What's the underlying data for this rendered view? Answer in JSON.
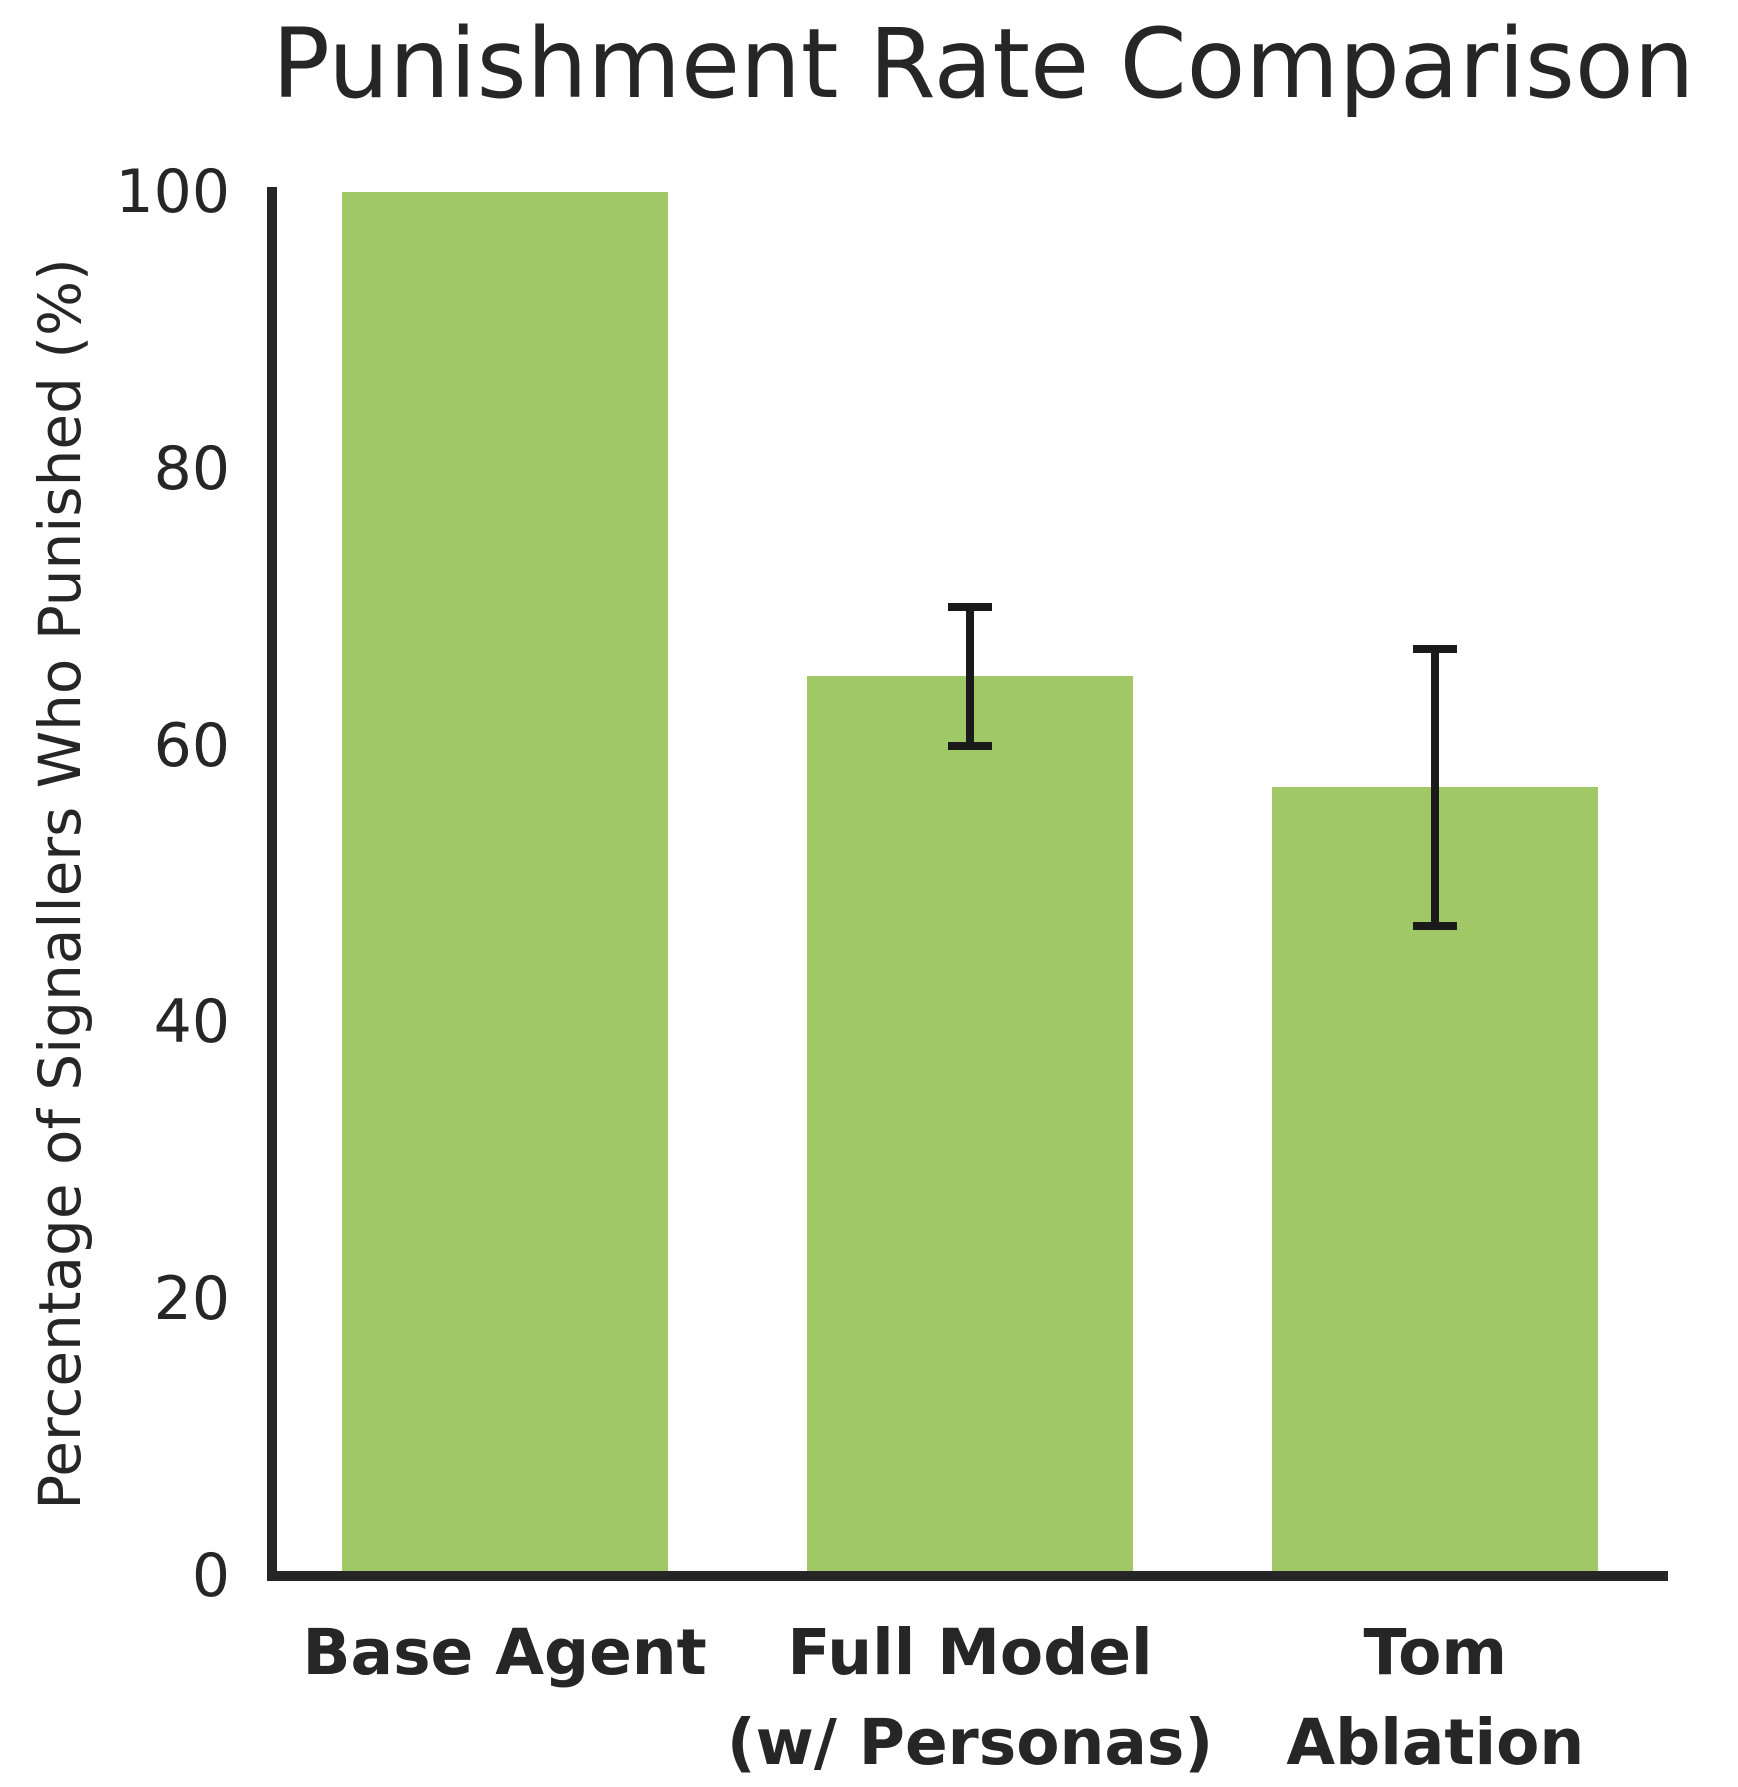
{
  "chart_data": {
    "type": "bar",
    "title": "Punishment Rate Comparison",
    "ylabel": "Percentage of Signallers Who Punished (%)",
    "xlabel": "",
    "ylim": [
      0,
      100
    ],
    "yticks": [
      0,
      20,
      40,
      60,
      80,
      100
    ],
    "categories": [
      [
        "Base Agent"
      ],
      [
        "Full Model",
        "(w/ Personas)"
      ],
      [
        "Tom",
        "Ablation"
      ]
    ],
    "values": [
      100,
      65,
      57
    ],
    "error_bars": [
      {
        "low": null,
        "high": null
      },
      {
        "low": 60,
        "high": 70
      },
      {
        "low": 47,
        "high": 67
      }
    ],
    "grid": false,
    "legend": null,
    "colors": {
      "bar": "#a0c867",
      "error": "#1a1a1a",
      "axis": "#262626",
      "text": "#262626"
    }
  }
}
